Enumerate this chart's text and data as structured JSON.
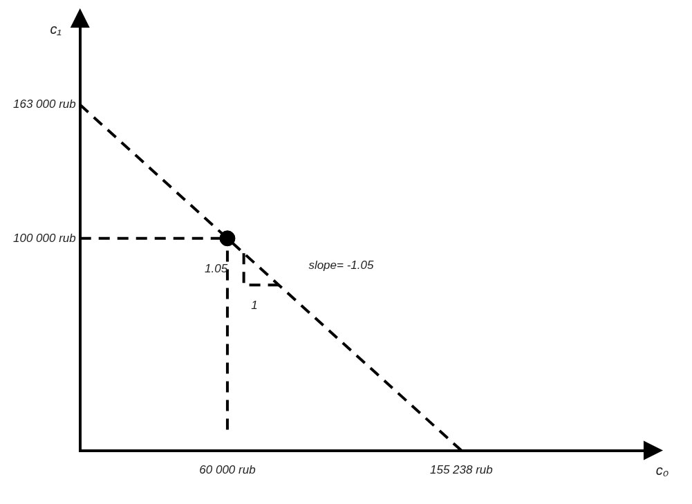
{
  "chart_data": {
    "type": "line",
    "xlabel": "c₀",
    "ylabel": "c₁",
    "xlim": [
      0,
      230000
    ],
    "ylim": [
      0,
      200000
    ],
    "xticks": [
      {
        "value": 60000,
        "label": "60 000 rub"
      },
      {
        "value": 155238,
        "label": "155 238 rub"
      }
    ],
    "yticks": [
      {
        "value": 100000,
        "label": "100 000 rub"
      },
      {
        "value": 163000,
        "label": "163 000 rub"
      }
    ],
    "series": [
      {
        "x": [
          0,
          155238
        ],
        "values": [
          163000,
          0
        ],
        "color": "#000000",
        "line_style": "dashed",
        "marker": "none"
      },
      {
        "type": "scatter",
        "x": [
          60000
        ],
        "values": [
          100000
        ],
        "color": "#000000",
        "marker": "circle"
      }
    ],
    "ref_lines": [
      {
        "axis": "x",
        "value": 60000,
        "line_style": "dashed"
      },
      {
        "axis": "y",
        "value": 100000,
        "line_style": "dashed"
      }
    ],
    "annotations": [
      "1.05",
      "1",
      "slope= -1.05"
    ]
  }
}
